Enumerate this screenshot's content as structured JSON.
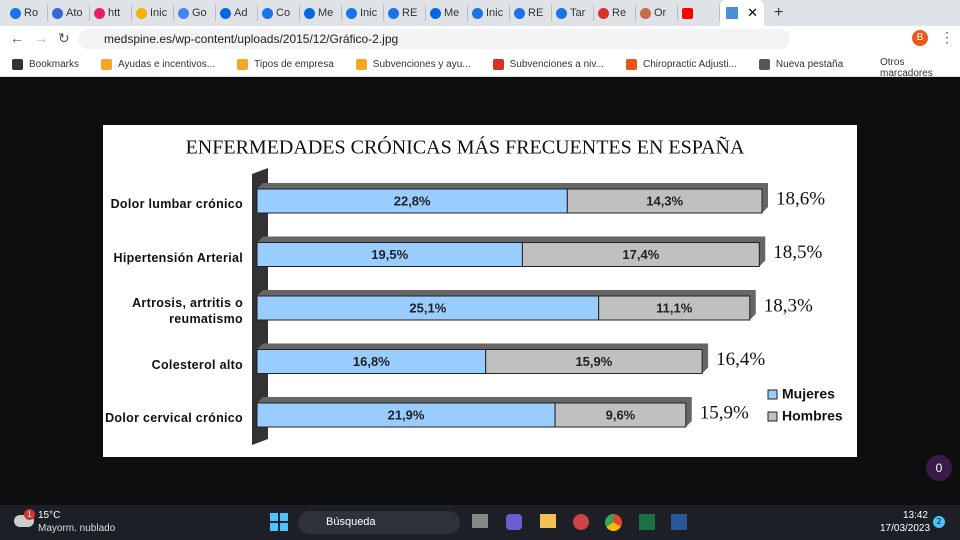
{
  "browser": {
    "tabs": [
      "Ro",
      "Ato",
      "htt",
      "Inic",
      "Go",
      "Ad",
      "Co",
      "Me",
      "Inic",
      "RE",
      "Me",
      "Inic",
      "RE",
      "Tar",
      "Re",
      "Or"
    ],
    "address": "medspine.es/wp-content/uploads/2015/12/Gráfico-2.jpg",
    "profile": "B",
    "bookmarks": [
      "Bookmarks",
      "Ayudas e incentivos...",
      "Tipos de empresa",
      "Subvenciones y ayu...",
      "Subvenciones a niv...",
      "Chiropractic Adjusti...",
      "Nueva pestaña"
    ],
    "other_bookmarks": "Otros marcadores",
    "floating_badge": "0"
  },
  "chart_data": {
    "type": "bar",
    "orientation": "horizontal",
    "stacked": true,
    "title": "ENFERMEDADES CRÓNICAS MÁS FRECUENTES EN ESPAÑA",
    "categories": [
      "Dolor lumbar crónico",
      "Hipertensión Arterial",
      "Artrosis, artritis o\nreumatismo",
      "Colesterol alto",
      "Dolor cervical crónico"
    ],
    "series": [
      {
        "name": "Mujeres",
        "color": "#99ccff",
        "values": [
          22.8,
          19.5,
          25.1,
          16.8,
          21.9
        ],
        "value_labels": [
          "22,8%",
          "19,5%",
          "25,1%",
          "16,8%",
          "21,9%"
        ]
      },
      {
        "name": "Hombres",
        "color": "#c0c0c0",
        "values": [
          14.3,
          17.4,
          11.1,
          15.9,
          9.6
        ],
        "value_labels": [
          "14,3%",
          "17,4%",
          "11,1%",
          "15,9%",
          "9,6%"
        ]
      }
    ],
    "totals": {
      "values": [
        18.6,
        18.5,
        18.3,
        16.4,
        15.9
      ],
      "value_labels": [
        "18,6%",
        "18,5%",
        "18,3%",
        "16,4%",
        "15,9%"
      ]
    },
    "legend": "right"
  },
  "taskbar": {
    "weather_badge": "1",
    "temperature": "15°C",
    "weather": "Mayorm. nublado",
    "search": "Búsqueda",
    "time": "13:42",
    "date": "17/03/2023",
    "notifications": "2"
  }
}
